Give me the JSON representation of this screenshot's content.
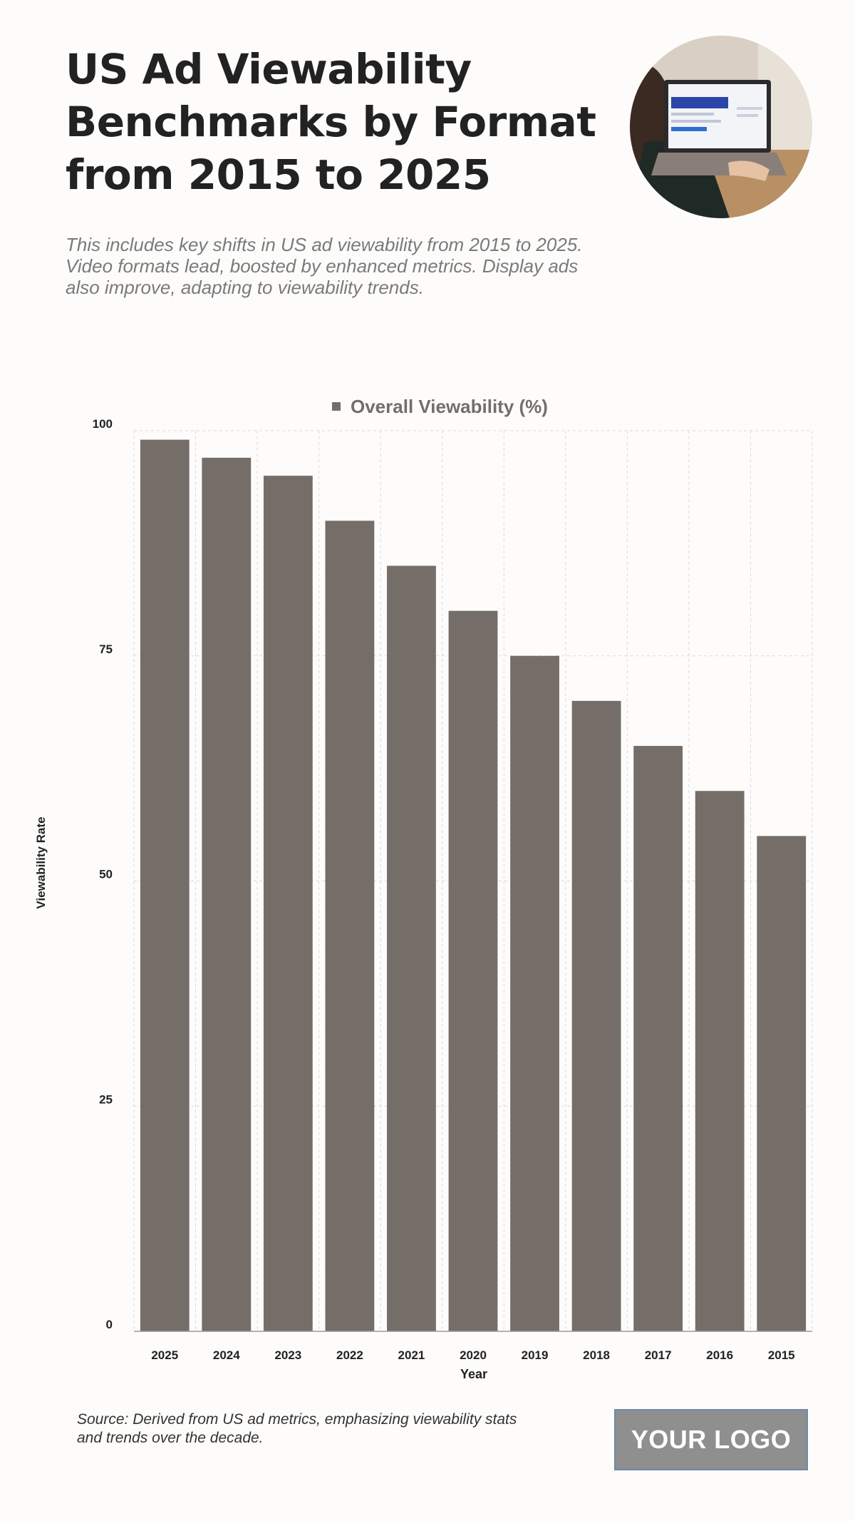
{
  "header": {
    "title": "US Ad Viewability Benchmarks by Format from 2015 to 2025",
    "subtitle": "This includes key shifts in US ad viewability from 2015 to 2025. Video formats lead, boosted by enhanced metrics. Display ads also improve, adapting to viewability trends."
  },
  "footer": {
    "source": "Source: Derived from US ad metrics, emphasizing viewability stats and trends over the decade.",
    "logo_text": "YOUR LOGO"
  },
  "colors": {
    "bar": "#756e68",
    "grid": "#d9d9d9",
    "text": "#222222",
    "background": "#fdfcfb"
  },
  "chart_data": {
    "type": "bar",
    "categories": [
      "2025",
      "2024",
      "2023",
      "2022",
      "2021",
      "2020",
      "2019",
      "2018",
      "2017",
      "2016",
      "2015"
    ],
    "series": [
      {
        "name": "Overall Viewability (%)",
        "values": [
          99,
          97,
          95,
          90,
          85,
          80,
          75,
          70,
          65,
          60,
          55
        ]
      }
    ],
    "xlabel": "Year",
    "ylabel": "Viewability Rate",
    "ylim": [
      0,
      100
    ],
    "yticks": [
      0,
      25,
      50,
      75,
      100
    ],
    "grid": true,
    "legend": "top-center"
  }
}
